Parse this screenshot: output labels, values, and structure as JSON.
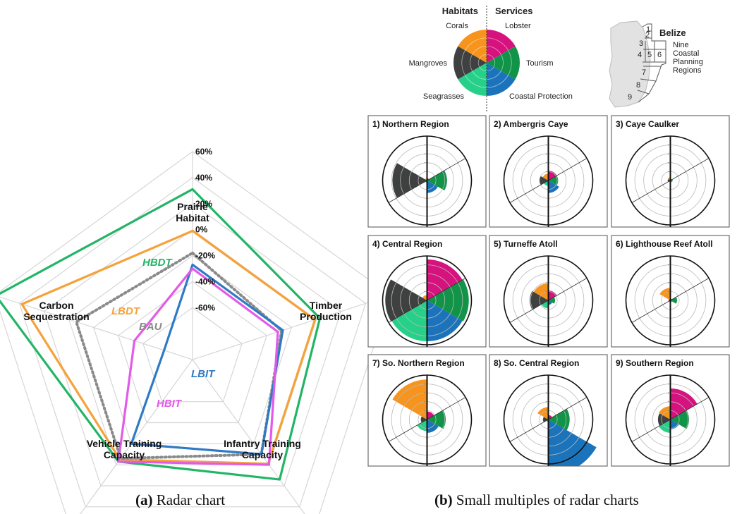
{
  "captions": {
    "a_letter": "(a)",
    "a_text": " Radar chart",
    "b_letter": "(b)",
    "b_text": " Small multiples of radar charts"
  },
  "colors": {
    "HBDT": "#22b566",
    "LBDT": "#f5a23a",
    "BAU": "#8a8a8a",
    "LBIT": "#2f7ac6",
    "HBIT": "#e25be8",
    "Corals": "#f7941d",
    "Lobster": "#d6127e",
    "Tourism": "#119447",
    "Coastal Protection": "#1b74bb",
    "Seagrasses": "#27d089",
    "Mangroves": "#3f4040"
  },
  "chart_data": [
    {
      "type": "radar",
      "axes": [
        "Prairie\nHabitat",
        "Timber\nProduction",
        "Infantry Training\nCapacity",
        "Vehicle Training\nCapacity",
        "Carbon\nSequestration"
      ],
      "ticks": [
        "60%",
        "40%",
        "20%",
        "0%",
        "-20%",
        "-40%",
        "-60%"
      ],
      "tick_values": [
        60,
        40,
        20,
        0,
        -20,
        -40,
        -60
      ],
      "range": [
        -100,
        60
      ],
      "series": [
        {
          "name": "HBDT",
          "values": [
            31,
            3,
            14,
            -3,
            59
          ]
        },
        {
          "name": "LBDT",
          "values": [
            -1,
            -1,
            -1,
            -5,
            38
          ]
        },
        {
          "name": "BAU",
          "values": [
            -18,
            -28,
            -10,
            -6,
            -6
          ]
        },
        {
          "name": "LBIT",
          "values": [
            -27,
            -27,
            -10,
            -20,
            -77
          ]
        },
        {
          "name": "HBIT",
          "values": [
            -30,
            -31,
            0,
            -3,
            -53
          ]
        }
      ]
    },
    {
      "type": "radar-small-multiples",
      "legend_headers": {
        "left": "Habitats",
        "right": "Services"
      },
      "categories": [
        "Lobster",
        "Tourism",
        "Coastal Protection",
        "Seagrasses",
        "Mangroves",
        "Corals"
      ],
      "panels": [
        {
          "title": "1) Northern Region",
          "values": [
            0.05,
            0.45,
            0.28,
            0.05,
            0.78,
            0.05
          ]
        },
        {
          "title": "2) Ambergris Caye",
          "values": [
            0.22,
            0.22,
            0.28,
            0.12,
            0.2,
            0.15
          ]
        },
        {
          "title": "3) Caye Caulker",
          "values": [
            0.04,
            0.05,
            0.04,
            0.04,
            0.06,
            0.07
          ]
        },
        {
          "title": "4) Central Region",
          "values": [
            0.92,
            0.94,
            0.92,
            0.92,
            0.94,
            0.12
          ]
        },
        {
          "title": "5) Turneffe Atoll",
          "values": [
            0.22,
            0.15,
            0.1,
            0.18,
            0.42,
            0.38
          ]
        },
        {
          "title": "6) Lighthouse Reef Atoll",
          "values": [
            0.04,
            0.15,
            0.04,
            0.04,
            0.04,
            0.28
          ]
        },
        {
          "title": "7) So. Northern Region",
          "values": [
            0.18,
            0.42,
            0.3,
            0.26,
            0.14,
            0.9
          ]
        },
        {
          "title": "8) So. Central Region",
          "values": [
            0.1,
            0.48,
            1.25,
            0.05,
            0.12,
            0.28
          ]
        },
        {
          "title": "9) Southern Region",
          "values": [
            0.7,
            0.42,
            0.22,
            0.3,
            0.28,
            0.3
          ]
        }
      ]
    }
  ],
  "map": {
    "title": "Belize",
    "subtitle_lines": [
      "Nine",
      "Coastal",
      "Planning",
      "Regions"
    ],
    "region_numbers": [
      "1",
      "2",
      "3",
      "4",
      "5",
      "6",
      "7",
      "8",
      "9"
    ]
  }
}
